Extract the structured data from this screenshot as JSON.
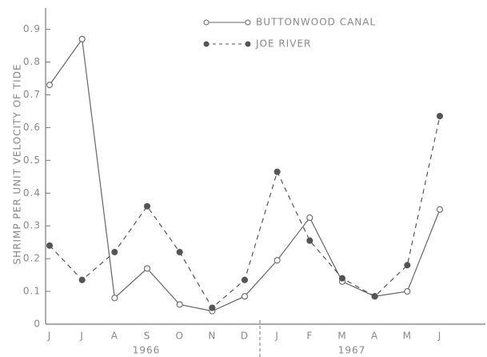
{
  "chart_data": {
    "type": "line",
    "y_label": "SHRIMP PER UNIT VELOCITY OF TIDE",
    "categories": [
      "J",
      "J",
      "A",
      "S",
      "O",
      "N",
      "D",
      "J",
      "F",
      "M",
      "A",
      "M",
      "J"
    ],
    "annotations": [
      "1966",
      "1967"
    ],
    "series": [
      {
        "name": "BUTTONWOOD CANAL",
        "color": "#666666",
        "marker": "open",
        "dash": false,
        "values": [
          0.73,
          0.87,
          0.08,
          0.17,
          0.06,
          0.04,
          0.085,
          0.195,
          0.325,
          0.13,
          0.085,
          0.1,
          0.35
        ]
      },
      {
        "name": "JOE RIVER",
        "color": "#555555",
        "marker": "filled",
        "dash": true,
        "values": [
          0.24,
          0.135,
          0.22,
          0.36,
          0.22,
          0.05,
          0.135,
          0.465,
          0.255,
          0.14,
          0.085,
          0.18,
          0.635
        ]
      }
    ],
    "ylim": [
      0,
      0.96
    ],
    "yticks": [
      0,
      0.1,
      0.2,
      0.3,
      0.4,
      0.5,
      0.6,
      0.7,
      0.8,
      0.9
    ]
  }
}
